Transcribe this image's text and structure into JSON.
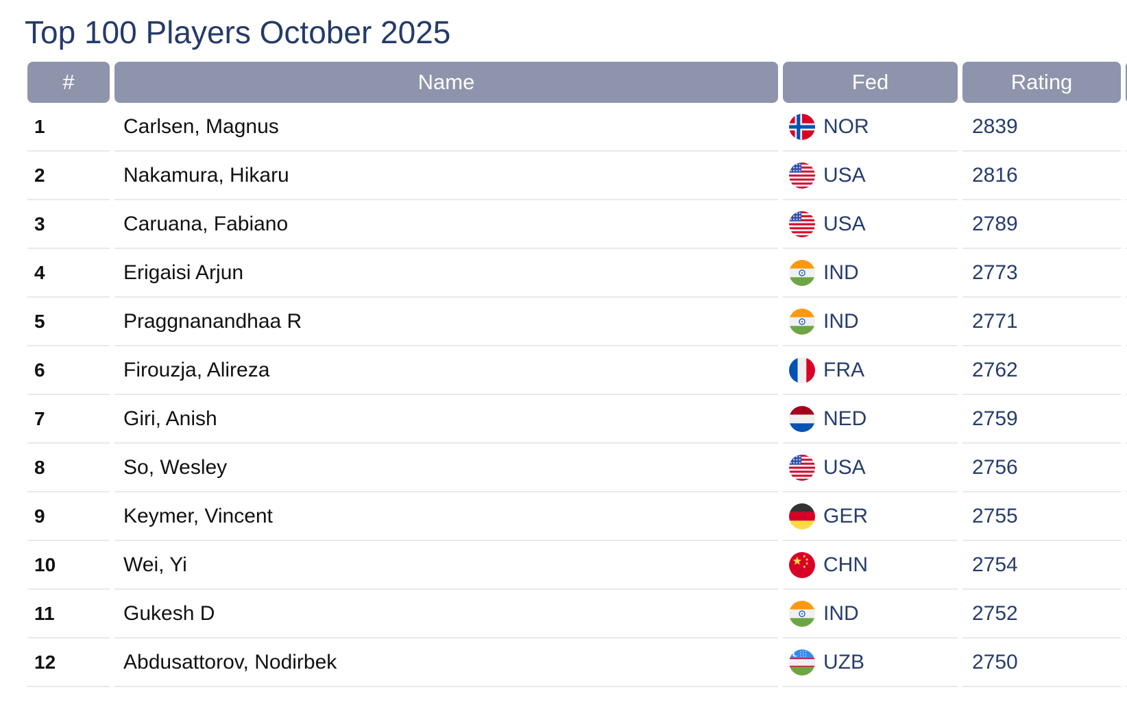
{
  "page": {
    "title": "Top 100 Players October 2025"
  },
  "colors": {
    "title_navy": "#243a6a",
    "header_bg": "#8e94ab",
    "header_text": "#ffffff",
    "cell_navy": "#263c6c",
    "name_black": "#111111",
    "row_separator": "#e8e8e8"
  },
  "table": {
    "columns": [
      {
        "key": "rank",
        "label": "#"
      },
      {
        "key": "name",
        "label": "Name"
      },
      {
        "key": "fed",
        "label": "Fed"
      },
      {
        "key": "rating",
        "label": "Rating"
      }
    ],
    "rows": [
      {
        "rank": "1",
        "name": "Carlsen, Magnus",
        "fed": "NOR",
        "flag": "nor-flag-icon",
        "rating": "2839"
      },
      {
        "rank": "2",
        "name": "Nakamura, Hikaru",
        "fed": "USA",
        "flag": "usa-flag-icon",
        "rating": "2816"
      },
      {
        "rank": "3",
        "name": "Caruana, Fabiano",
        "fed": "USA",
        "flag": "usa-flag-icon",
        "rating": "2789"
      },
      {
        "rank": "4",
        "name": "Erigaisi Arjun",
        "fed": "IND",
        "flag": "ind-flag-icon",
        "rating": "2773"
      },
      {
        "rank": "5",
        "name": "Praggnanandhaa R",
        "fed": "IND",
        "flag": "ind-flag-icon",
        "rating": "2771"
      },
      {
        "rank": "6",
        "name": "Firouzja, Alireza",
        "fed": "FRA",
        "flag": "fra-flag-icon",
        "rating": "2762"
      },
      {
        "rank": "7",
        "name": "Giri, Anish",
        "fed": "NED",
        "flag": "ned-flag-icon",
        "rating": "2759"
      },
      {
        "rank": "8",
        "name": "So, Wesley",
        "fed": "USA",
        "flag": "usa-flag-icon",
        "rating": "2756"
      },
      {
        "rank": "9",
        "name": "Keymer, Vincent",
        "fed": "GER",
        "flag": "ger-flag-icon",
        "rating": "2755"
      },
      {
        "rank": "10",
        "name": "Wei, Yi",
        "fed": "CHN",
        "flag": "chn-flag-icon",
        "rating": "2754"
      },
      {
        "rank": "11",
        "name": "Gukesh D",
        "fed": "IND",
        "flag": "ind-flag-icon",
        "rating": "2752"
      },
      {
        "rank": "12",
        "name": "Abdusattorov, Nodirbek",
        "fed": "UZB",
        "flag": "uzb-flag-icon",
        "rating": "2750"
      }
    ]
  }
}
